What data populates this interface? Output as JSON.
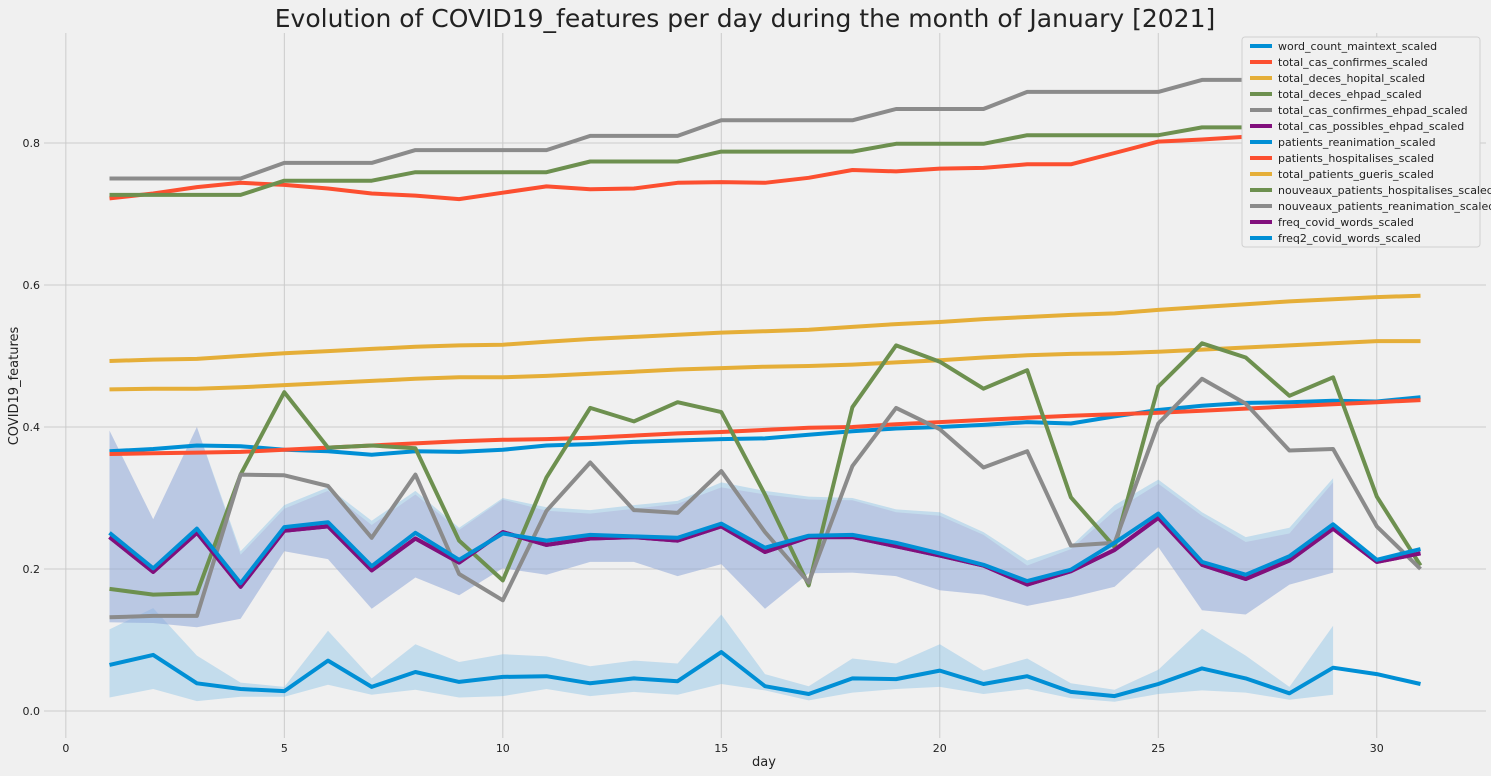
{
  "chart_data": {
    "type": "line",
    "title": "Evolution of COVID19_features per day during the month of January [2021]",
    "xlabel": "day",
    "ylabel": "COVID19_features",
    "xlim": [
      -0.5,
      32.5
    ],
    "ylim": [
      -0.038,
      0.955
    ],
    "x_ticks": [
      0,
      5,
      10,
      15,
      20,
      25,
      30
    ],
    "y_ticks": [
      0.0,
      0.2,
      0.4,
      0.6,
      0.8
    ],
    "y_tick_labels": [
      "0.0",
      "0.2",
      "0.4",
      "0.6",
      "0.8"
    ],
    "grid": true,
    "legend_position": "top-right",
    "x": [
      1,
      2,
      3,
      4,
      5,
      6,
      7,
      8,
      9,
      10,
      11,
      12,
      13,
      14,
      15,
      16,
      17,
      18,
      19,
      20,
      21,
      22,
      23,
      24,
      25,
      26,
      27,
      28,
      29,
      30,
      31
    ],
    "series": [
      {
        "name": "word_count_maintext_scaled",
        "color": "#008fd5",
        "values": [
          0.065,
          0.079,
          0.039,
          0.031,
          0.028,
          0.071,
          0.034,
          0.055,
          0.041,
          0.048,
          0.049,
          0.039,
          0.046,
          0.042,
          0.083,
          0.035,
          0.024,
          0.046,
          0.045,
          0.057,
          0.038,
          0.049,
          0.027,
          0.021,
          0.038,
          0.06,
          0.046,
          0.025,
          0.061,
          0.052,
          0.038
        ],
        "band_low": [
          0.019,
          0.031,
          0.014,
          0.02,
          0.02,
          0.037,
          0.023,
          0.03,
          0.019,
          0.021,
          0.031,
          0.021,
          0.027,
          0.023,
          0.038,
          0.029,
          0.015,
          0.026,
          0.031,
          0.034,
          0.024,
          0.031,
          0.018,
          0.013,
          0.024,
          0.029,
          0.026,
          0.016,
          0.023,
          null,
          null
        ],
        "band_high": [
          0.115,
          0.145,
          0.078,
          0.04,
          0.034,
          0.113,
          0.046,
          0.094,
          0.069,
          0.08,
          0.077,
          0.063,
          0.071,
          0.067,
          0.136,
          0.052,
          0.035,
          0.074,
          0.067,
          0.094,
          0.057,
          0.074,
          0.039,
          0.03,
          0.058,
          0.116,
          0.078,
          0.034,
          0.12,
          null,
          null
        ]
      },
      {
        "name": "total_cas_confirmes_scaled",
        "color": "#fc4f30",
        "values": [
          0.722,
          0.729,
          0.738,
          0.744,
          0.741,
          0.736,
          0.729,
          0.726,
          0.721,
          0.73,
          0.739,
          0.735,
          0.736,
          0.744,
          0.745,
          0.744,
          0.751,
          0.762,
          0.76,
          0.764,
          0.765,
          0.77,
          0.77,
          0.786,
          0.802,
          0.805,
          0.809,
          0.811,
          0.813,
          0.814,
          0.815
        ]
      },
      {
        "name": "total_deces_hopital_scaled",
        "color": "#e5ae38",
        "values": [
          0.493,
          0.495,
          0.496,
          0.5,
          0.504,
          0.507,
          0.51,
          0.513,
          0.515,
          0.516,
          0.52,
          0.524,
          0.527,
          0.53,
          0.533,
          0.535,
          0.537,
          0.541,
          0.545,
          0.548,
          0.552,
          0.555,
          0.558,
          0.56,
          0.565,
          0.569,
          0.573,
          0.577,
          0.58,
          0.583,
          0.585
        ]
      },
      {
        "name": "total_deces_ehpad_scaled",
        "color": "#6d904f",
        "values": [
          0.727,
          0.727,
          0.727,
          0.727,
          0.747,
          0.747,
          0.747,
          0.759,
          0.759,
          0.759,
          0.759,
          0.774,
          0.774,
          0.774,
          0.788,
          0.788,
          0.788,
          0.788,
          0.799,
          0.799,
          0.799,
          0.811,
          0.811,
          0.811,
          0.811,
          0.822,
          0.822,
          0.822,
          0.822,
          0.822,
          0.822
        ]
      },
      {
        "name": "total_cas_confirmes_ehpad_scaled",
        "color": "#8b8b8b",
        "values": [
          0.75,
          0.75,
          0.75,
          0.75,
          0.772,
          0.772,
          0.772,
          0.79,
          0.79,
          0.79,
          0.79,
          0.81,
          0.81,
          0.81,
          0.832,
          0.832,
          0.832,
          0.832,
          0.848,
          0.848,
          0.848,
          0.872,
          0.872,
          0.872,
          0.872,
          0.889,
          0.889,
          0.889,
          0.905,
          0.91,
          0.91
        ]
      },
      {
        "name": "total_cas_possibles_ehpad_scaled",
        "color": "#810f7c",
        "values": [
          0.245,
          0.196,
          0.251,
          0.175,
          0.254,
          0.26,
          0.198,
          0.243,
          0.209,
          0.252,
          0.234,
          0.243,
          0.245,
          0.24,
          0.26,
          0.224,
          0.245,
          0.245,
          0.232,
          0.219,
          0.205,
          0.178,
          0.197,
          0.227,
          0.272,
          0.206,
          0.186,
          0.212,
          0.257,
          0.21,
          0.222
        ],
        "band_low": [
          0.125,
          0.124,
          0.118,
          0.13,
          0.225,
          0.214,
          0.144,
          0.188,
          0.163,
          0.201,
          0.192,
          0.21,
          0.21,
          0.19,
          0.207,
          0.144,
          0.194,
          0.195,
          0.19,
          0.17,
          0.164,
          0.148,
          0.16,
          0.175,
          0.231,
          0.142,
          0.136,
          0.178,
          0.195,
          null,
          null
        ],
        "band_high": [
          0.395,
          0.27,
          0.4,
          0.22,
          0.285,
          0.31,
          0.262,
          0.305,
          0.255,
          0.298,
          0.282,
          0.278,
          0.285,
          0.292,
          0.315,
          0.305,
          0.298,
          0.297,
          0.28,
          0.275,
          0.248,
          0.205,
          0.228,
          0.282,
          0.32,
          0.275,
          0.238,
          0.25,
          0.322,
          null,
          null
        ]
      },
      {
        "name": "patients_reanimation_scaled",
        "color": "#008fd5",
        "values": [
          0.366,
          0.369,
          0.374,
          0.373,
          0.368,
          0.366,
          0.361,
          0.366,
          0.365,
          0.368,
          0.374,
          0.376,
          0.379,
          0.381,
          0.383,
          0.384,
          0.389,
          0.394,
          0.398,
          0.4,
          0.403,
          0.407,
          0.405,
          0.415,
          0.424,
          0.43,
          0.434,
          0.435,
          0.437,
          0.436,
          0.442
        ]
      },
      {
        "name": "patients_hospitalises_scaled",
        "color": "#fc4f30",
        "values": [
          0.362,
          0.363,
          0.364,
          0.365,
          0.368,
          0.371,
          0.374,
          0.377,
          0.38,
          0.382,
          0.383,
          0.385,
          0.388,
          0.391,
          0.393,
          0.396,
          0.399,
          0.4,
          0.404,
          0.407,
          0.41,
          0.413,
          0.416,
          0.418,
          0.42,
          0.423,
          0.426,
          0.429,
          0.432,
          0.435,
          0.438
        ]
      },
      {
        "name": "total_patients_gueris_scaled",
        "color": "#e5ae38",
        "values": [
          0.453,
          0.454,
          0.454,
          0.456,
          0.459,
          0.462,
          0.465,
          0.468,
          0.47,
          0.47,
          0.472,
          0.475,
          0.478,
          0.481,
          0.483,
          0.485,
          0.486,
          0.488,
          0.491,
          0.494,
          0.498,
          0.501,
          0.503,
          0.504,
          0.506,
          0.509,
          0.512,
          0.515,
          0.518,
          0.521,
          0.521
        ]
      },
      {
        "name": "nouveaux_patients_hospitalises_scaled",
        "color": "#6d904f",
        "values": [
          0.172,
          0.164,
          0.166,
          0.333,
          0.449,
          0.371,
          0.374,
          0.37,
          0.24,
          0.184,
          0.329,
          0.427,
          0.408,
          0.435,
          0.421,
          0.305,
          0.177,
          0.428,
          0.515,
          0.492,
          0.454,
          0.48,
          0.301,
          0.231,
          0.457,
          0.518,
          0.498,
          0.444,
          0.47,
          0.302,
          0.205
        ]
      },
      {
        "name": "nouveaux_patients_reanimation_scaled",
        "color": "#8b8b8b",
        "values": [
          0.132,
          0.134,
          0.134,
          0.333,
          0.332,
          0.317,
          0.244,
          0.333,
          0.193,
          0.156,
          0.282,
          0.35,
          0.283,
          0.279,
          0.338,
          0.252,
          0.181,
          0.345,
          0.427,
          0.397,
          0.343,
          0.366,
          0.233,
          0.237,
          0.405,
          0.468,
          0.433,
          0.367,
          0.369,
          0.26,
          0.2
        ]
      },
      {
        "name": "freq_covid_words_scaled",
        "color": "#810f7c",
        "values": [
          0.245,
          0.196,
          0.251,
          0.175,
          0.254,
          0.26,
          0.198,
          0.243,
          0.209,
          0.252,
          0.234,
          0.243,
          0.245,
          0.24,
          0.26,
          0.224,
          0.245,
          0.245,
          0.232,
          0.219,
          0.205,
          0.178,
          0.197,
          0.227,
          0.272,
          0.206,
          0.186,
          0.212,
          0.257,
          0.21,
          0.222
        ]
      },
      {
        "name": "freq2_covid_words_scaled",
        "color": "#008fd5",
        "values": [
          0.251,
          0.201,
          0.257,
          0.18,
          0.259,
          0.266,
          0.204,
          0.251,
          0.213,
          0.25,
          0.24,
          0.248,
          0.246,
          0.244,
          0.264,
          0.23,
          0.247,
          0.248,
          0.237,
          0.222,
          0.206,
          0.183,
          0.199,
          0.237,
          0.278,
          0.21,
          0.192,
          0.218,
          0.263,
          0.213,
          0.228
        ],
        "band_low": [
          0.125,
          0.124,
          0.118,
          0.13,
          0.225,
          0.214,
          0.144,
          0.188,
          0.163,
          0.201,
          0.192,
          0.21,
          0.21,
          0.19,
          0.207,
          0.144,
          0.194,
          0.195,
          0.19,
          0.17,
          0.164,
          0.148,
          0.16,
          0.175,
          0.231,
          0.142,
          0.136,
          0.178,
          0.195,
          null,
          null
        ],
        "band_high": [
          0.395,
          0.27,
          0.4,
          0.225,
          0.29,
          0.315,
          0.268,
          0.31,
          0.258,
          0.3,
          0.287,
          0.283,
          0.29,
          0.296,
          0.322,
          0.31,
          0.302,
          0.3,
          0.284,
          0.28,
          0.252,
          0.212,
          0.232,
          0.29,
          0.326,
          0.28,
          0.245,
          0.258,
          0.328,
          null,
          null
        ]
      }
    ]
  }
}
